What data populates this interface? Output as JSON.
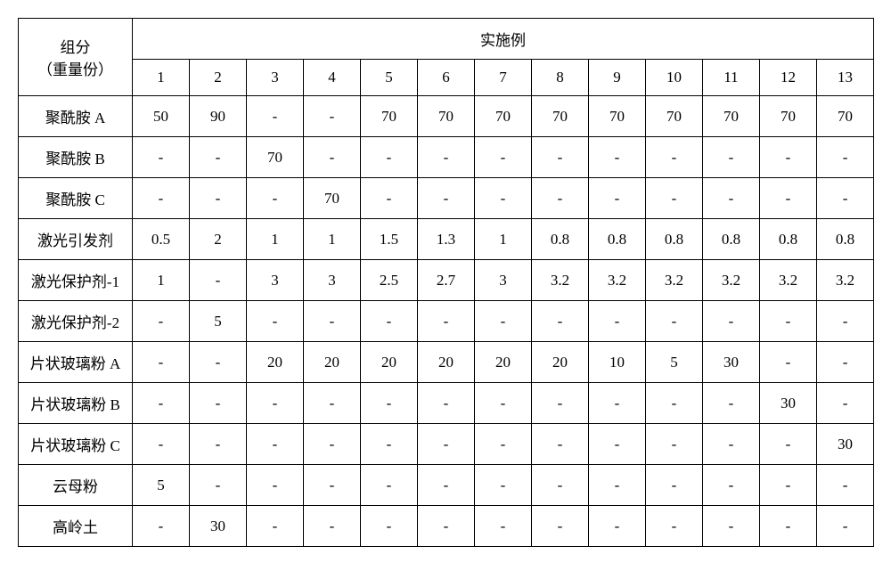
{
  "table": {
    "header_component_line1": "组分",
    "header_component_line2": "（重量份）",
    "header_example": "实施例",
    "example_numbers": [
      "1",
      "2",
      "3",
      "4",
      "5",
      "6",
      "7",
      "8",
      "9",
      "10",
      "11",
      "12",
      "13"
    ],
    "rows": [
      {
        "label": "聚酰胺 A",
        "values": [
          "50",
          "90",
          "-",
          "-",
          "70",
          "70",
          "70",
          "70",
          "70",
          "70",
          "70",
          "70",
          "70"
        ]
      },
      {
        "label": "聚酰胺 B",
        "values": [
          "-",
          "-",
          "70",
          "-",
          "-",
          "-",
          "-",
          "-",
          "-",
          "-",
          "-",
          "-",
          "-"
        ]
      },
      {
        "label": "聚酰胺 C",
        "values": [
          "-",
          "-",
          "-",
          "70",
          "-",
          "-",
          "-",
          "-",
          "-",
          "-",
          "-",
          "-",
          "-"
        ]
      },
      {
        "label": "激光引发剂",
        "values": [
          "0.5",
          "2",
          "1",
          "1",
          "1.5",
          "1.3",
          "1",
          "0.8",
          "0.8",
          "0.8",
          "0.8",
          "0.8",
          "0.8"
        ]
      },
      {
        "label": "激光保护剂-1",
        "values": [
          "1",
          "-",
          "3",
          "3",
          "2.5",
          "2.7",
          "3",
          "3.2",
          "3.2",
          "3.2",
          "3.2",
          "3.2",
          "3.2"
        ]
      },
      {
        "label": "激光保护剂-2",
        "values": [
          "-",
          "5",
          "-",
          "-",
          "-",
          "-",
          "-",
          "-",
          "-",
          "-",
          "-",
          "-",
          "-"
        ]
      },
      {
        "label": "片状玻璃粉 A",
        "values": [
          "-",
          "-",
          "20",
          "20",
          "20",
          "20",
          "20",
          "20",
          "10",
          "5",
          "30",
          "-",
          "-"
        ]
      },
      {
        "label": "片状玻璃粉 B",
        "values": [
          "-",
          "-",
          "-",
          "-",
          "-",
          "-",
          "-",
          "-",
          "-",
          "-",
          "-",
          "30",
          "-"
        ]
      },
      {
        "label": "片状玻璃粉 C",
        "values": [
          "-",
          "-",
          "-",
          "-",
          "-",
          "-",
          "-",
          "-",
          "-",
          "-",
          "-",
          "-",
          "30"
        ]
      },
      {
        "label": "云母粉",
        "values": [
          "5",
          "-",
          "-",
          "-",
          "-",
          "-",
          "-",
          "-",
          "-",
          "-",
          "-",
          "-",
          "-"
        ]
      },
      {
        "label": "高岭土",
        "values": [
          "-",
          "30",
          "-",
          "-",
          "-",
          "-",
          "-",
          "-",
          "-",
          "-",
          "-",
          "-",
          "-"
        ]
      }
    ],
    "colors": {
      "background": "#ffffff",
      "border": "#000000",
      "text": "#000000"
    },
    "font_size_pt": 13
  }
}
